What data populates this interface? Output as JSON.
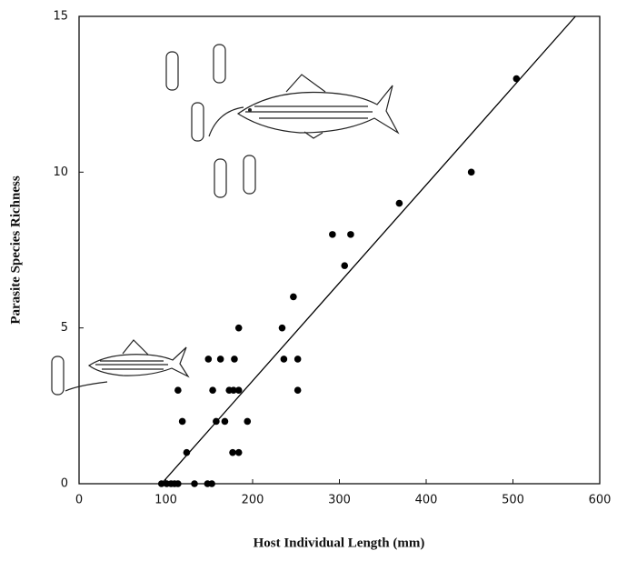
{
  "chart_data": {
    "type": "scatter",
    "xlabel": "Host Individual Length (mm)",
    "ylabel": "Parasite Species Richness",
    "xlim": [
      0,
      600
    ],
    "ylim": [
      0,
      15
    ],
    "xticks": [
      0,
      100,
      200,
      300,
      400,
      500,
      600
    ],
    "yticks": [
      0,
      5,
      10,
      15
    ],
    "series": [
      {
        "type": "scatter",
        "color": "#000000",
        "x": [
          95,
          101,
          106,
          110,
          114,
          133,
          148,
          153,
          124,
          177,
          184,
          119,
          158,
          168,
          194,
          114,
          154,
          173,
          178,
          184,
          252,
          149,
          163,
          179,
          236,
          252,
          184,
          234,
          247,
          306,
          292,
          313,
          369,
          452,
          504
        ],
        "values": [
          0,
          0,
          0,
          0,
          0,
          0,
          0,
          0,
          1,
          1,
          1,
          2,
          2,
          2,
          2,
          3,
          3,
          3,
          3,
          3,
          3,
          4,
          4,
          4,
          4,
          4,
          5,
          5,
          6,
          7,
          8,
          8,
          9,
          10,
          13
        ]
      },
      {
        "type": "line",
        "color": "#000000",
        "x": [
          95,
          572
        ],
        "values": [
          0,
          15
        ]
      }
    ]
  }
}
